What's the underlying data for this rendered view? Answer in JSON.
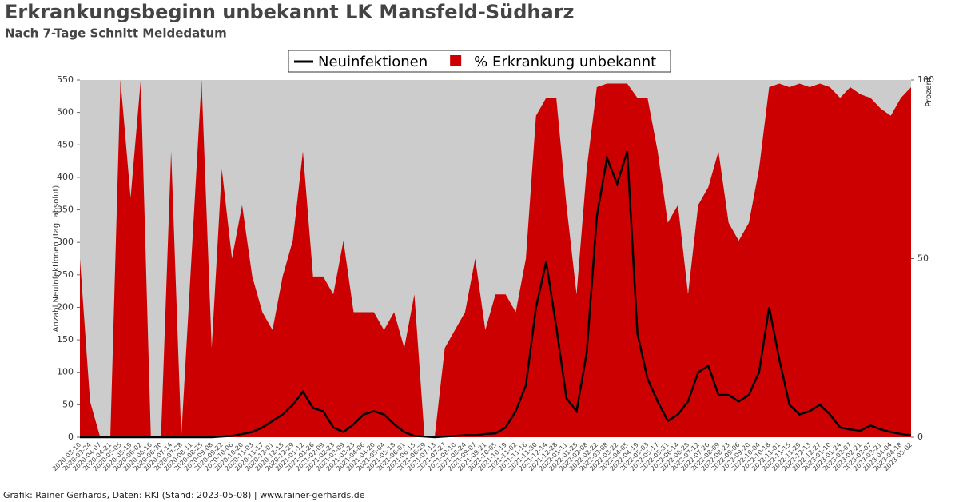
{
  "chart_data": {
    "type": "line",
    "title": "Erkrankungsbeginn unbekannt LK Mansfeld-Südharz",
    "subtitle": "Nach 7-Tage Schnitt Meldedatum",
    "footer": "Grafik: Rainer Gerhards, Daten: RKI (Stand: 2023-05-08) | www.rainer-gerhards.de",
    "ylabel": "Anzahl Neuinfektionen (tag. absolut)",
    "y2label": "Prozent",
    "legend": "upper center",
    "background": "#cccccc",
    "categories": [
      "2020-03-10",
      "2020-03-24",
      "2020-04-07",
      "2020-04-21",
      "2020-05-05",
      "2020-05-19",
      "2020-06-02",
      "2020-06-16",
      "2020-06-30",
      "2020-07-14",
      "2020-07-28",
      "2020-08-11",
      "2020-08-25",
      "2020-09-08",
      "2020-09-22",
      "2020-10-06",
      "2020-10-20",
      "2020-11-03",
      "2020-11-17",
      "2020-12-01",
      "2020-12-15",
      "2020-12-29",
      "2021-01-12",
      "2021-01-26",
      "2021-02-09",
      "2021-02-23",
      "2021-03-09",
      "2021-03-23",
      "2021-04-06",
      "2021-04-20",
      "2021-05-04",
      "2021-05-18",
      "2021-06-01",
      "2021-06-15",
      "2021-06-29",
      "2021-07-13",
      "2021-07-27",
      "2021-08-10",
      "2021-08-24",
      "2021-09-07",
      "2021-09-21",
      "2021-10-05",
      "2021-10-19",
      "2021-11-02",
      "2021-11-16",
      "2021-11-30",
      "2021-12-14",
      "2021-12-28",
      "2022-01-11",
      "2022-01-25",
      "2022-02-08",
      "2022-02-22",
      "2022-03-08",
      "2022-03-22",
      "2022-04-05",
      "2022-04-19",
      "2022-05-03",
      "2022-05-17",
      "2022-05-31",
      "2022-06-14",
      "2022-06-28",
      "2022-07-12",
      "2022-07-26",
      "2022-08-09",
      "2022-08-23",
      "2022-09-06",
      "2022-09-20",
      "2022-10-04",
      "2022-10-18",
      "2022-11-01",
      "2022-11-15",
      "2022-11-29",
      "2022-12-13",
      "2022-12-27",
      "2023-01-10",
      "2023-01-24",
      "2023-02-07",
      "2023-02-21",
      "2023-03-07",
      "2023-03-21",
      "2023-04-04",
      "2023-04-18",
      "2023-05-02"
    ],
    "series": [
      {
        "name": "Neuinfektionen",
        "color": "#000000",
        "axis": "y",
        "values": [
          0,
          0,
          0,
          0,
          0,
          0,
          0,
          0,
          0,
          0,
          0,
          0,
          0,
          0,
          1,
          2,
          5,
          8,
          15,
          25,
          35,
          50,
          70,
          45,
          40,
          15,
          8,
          20,
          35,
          40,
          35,
          20,
          8,
          2,
          1,
          0,
          1,
          2,
          3,
          3,
          5,
          6,
          15,
          40,
          80,
          200,
          270,
          170,
          60,
          40,
          130,
          340,
          430,
          390,
          440,
          160,
          90,
          55,
          25,
          35,
          55,
          100,
          110,
          65,
          65,
          55,
          65,
          100,
          200,
          120,
          50,
          35,
          40,
          50,
          35,
          15,
          12,
          10,
          18,
          12,
          8,
          5,
          3
        ]
      },
      {
        "name": "% Erkrankung unbekannt",
        "color": "#cc0000",
        "axis": "y2",
        "values": [
          50,
          10,
          0,
          0,
          100,
          67,
          100,
          0,
          0,
          80,
          0,
          50,
          100,
          25,
          75,
          50,
          65,
          45,
          35,
          30,
          45,
          55,
          80,
          45,
          45,
          40,
          55,
          35,
          35,
          35,
          30,
          35,
          25,
          40,
          0,
          0,
          25,
          30,
          35,
          50,
          30,
          40,
          40,
          35,
          50,
          90,
          95,
          95,
          65,
          40,
          75,
          98,
          99,
          99,
          99,
          95,
          95,
          80,
          60,
          65,
          40,
          65,
          70,
          80,
          60,
          55,
          60,
          75,
          98,
          99,
          98,
          99,
          98,
          99,
          98,
          95,
          98,
          96,
          95,
          92,
          90,
          95,
          98
        ]
      }
    ],
    "ylim": [
      0,
      550
    ],
    "yticks": [
      0,
      50,
      100,
      150,
      200,
      250,
      300,
      350,
      400,
      450,
      500,
      550
    ],
    "y2lim": [
      0,
      100
    ],
    "y2ticks": [
      0,
      50,
      100
    ]
  }
}
